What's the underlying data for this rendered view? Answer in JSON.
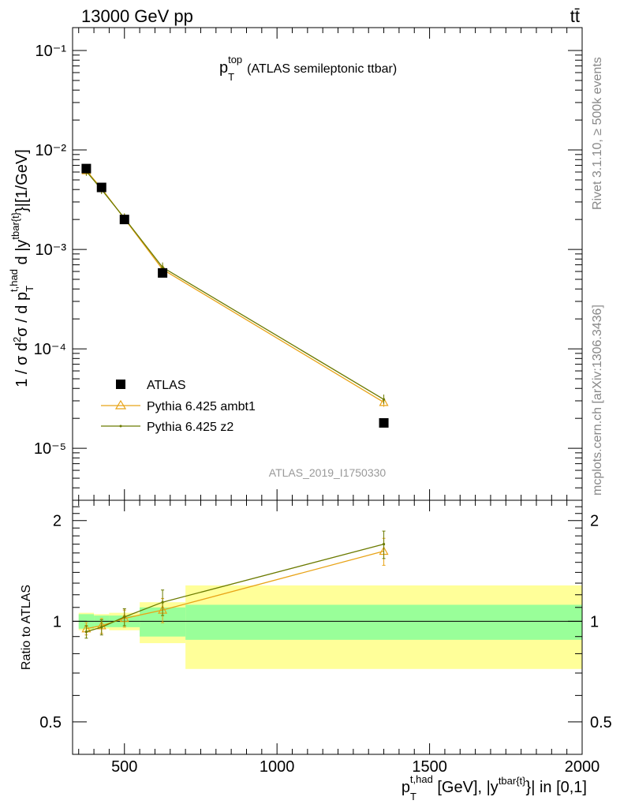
{
  "header": {
    "energy_label": "13000 GeV pp",
    "process_label": "tt̄"
  },
  "side_text": {
    "rivet": "Rivet 3.1.10, ≥ 500k events",
    "mcplots": "mcplots.cern.ch [arXiv:1306.3436]"
  },
  "chart_data": {
    "type": "scatter",
    "title": "p_T^top (ATLAS semileptonic ttbar)",
    "analysis_label": "ATLAS_2019_I1750330",
    "xlabel": "p_T^{t,had} [GeV], |y^{tbar{t}}| in [0,1]",
    "ylabel": "1 / σ d²σ / d p_T^{t,had} d |y^{tbar{t}}|[1/GeV]",
    "ratio_ylabel": "Ratio to ATLAS",
    "xlim": [
      330,
      2000
    ],
    "ylim": [
      3e-06,
      0.17
    ],
    "yscale": "log",
    "ratio_ylim": [
      0.4,
      2.3
    ],
    "ratio_yscale": "log",
    "x_ticks": [
      500,
      1000,
      1500,
      2000
    ],
    "y_ticks": [
      "10⁻¹",
      "10⁻²",
      "10⁻³",
      "10⁻⁴",
      "10⁻⁵"
    ],
    "ratio_ticks": [
      "2",
      "1",
      "0.5"
    ],
    "bin_edges": [
      350,
      400,
      450,
      550,
      700,
      2000
    ],
    "data": {
      "name": "ATLAS",
      "x": [
        375,
        425,
        500,
        625,
        1350
      ],
      "y": [
        0.0065,
        0.0042,
        0.002,
        0.00058,
        1.8e-05
      ],
      "stat_band": [
        0.05,
        0.04,
        0.04,
        0.1,
        0.12
      ],
      "total_band": [
        0.06,
        0.05,
        0.06,
        0.14,
        0.28
      ]
    },
    "series": [
      {
        "name": "Pythia 6.425 ambt1",
        "color": "#e8a317",
        "marker": "triangle",
        "x": [
          375,
          425,
          500,
          625,
          1350
        ],
        "y": [
          0.0062,
          0.0041,
          0.00204,
          0.00063,
          2.9e-05
        ],
        "ratio": [
          0.95,
          0.97,
          1.02,
          1.08,
          1.62
        ],
        "ratio_err": [
          0.04,
          0.05,
          0.06,
          0.09,
          0.15
        ]
      },
      {
        "name": "Pythia 6.425 z2",
        "color": "#6b7a00",
        "marker": "dot",
        "x": [
          375,
          425,
          500,
          625,
          1350
        ],
        "y": [
          0.0061,
          0.004,
          0.00206,
          0.00066,
          3.1e-05
        ],
        "ratio": [
          0.93,
          0.96,
          1.03,
          1.14,
          1.7
        ],
        "ratio_err": [
          0.04,
          0.05,
          0.06,
          0.1,
          0.16
        ]
      }
    ],
    "legend_position": "lower-left"
  }
}
